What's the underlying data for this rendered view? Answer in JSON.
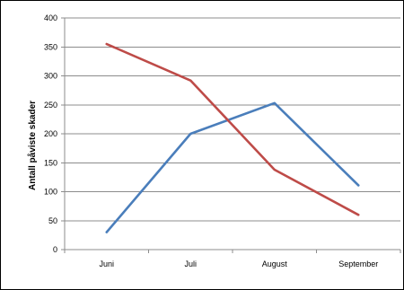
{
  "chart_data": {
    "type": "line",
    "categories": [
      "Juni",
      "Juli",
      "August",
      "September"
    ],
    "series": [
      {
        "values": [
          30,
          200,
          253,
          111
        ],
        "color": "#4A7EBB"
      },
      {
        "values": [
          355,
          292,
          138,
          60
        ],
        "color": "#BE4B48"
      }
    ],
    "xlabel": "",
    "ylabel": "Antall påviste skader",
    "ylim": [
      0,
      400
    ],
    "yticks": [
      0,
      50,
      100,
      150,
      200,
      250,
      300,
      350,
      400
    ],
    "grid": true,
    "legend": "none"
  }
}
